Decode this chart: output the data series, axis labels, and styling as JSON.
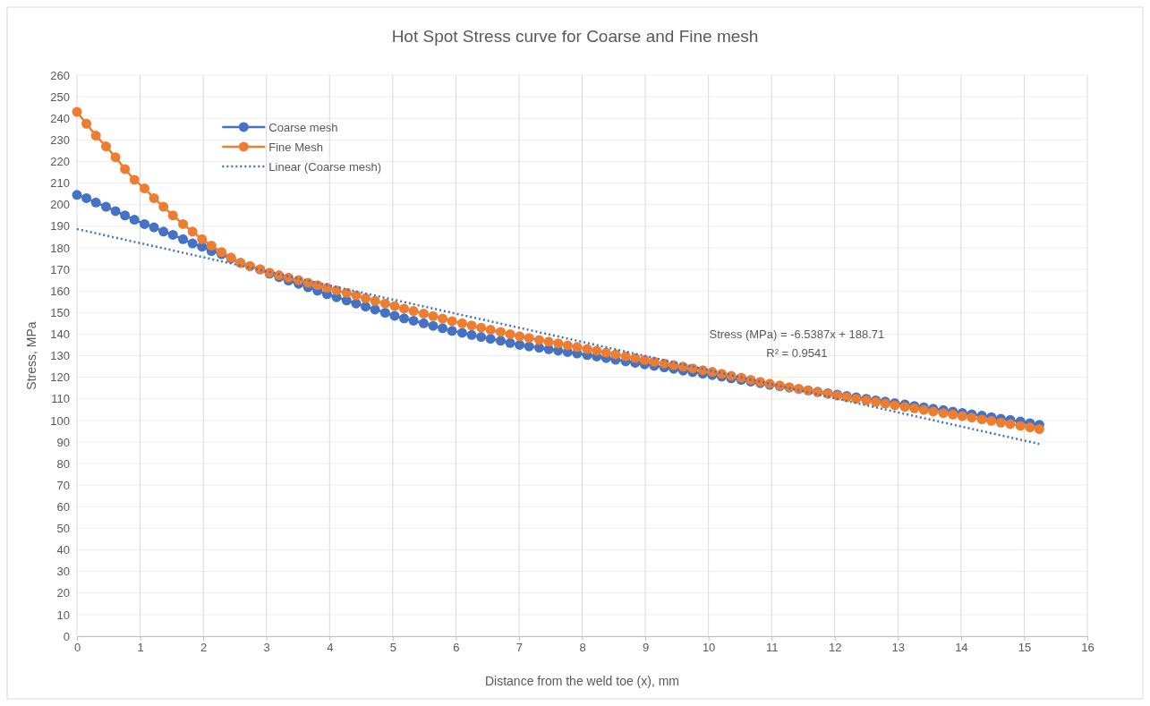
{
  "chart_data": {
    "type": "line",
    "title": "Hot Spot Stress curve for Coarse and Fine mesh",
    "xlabel": "Distance from the weld toe (x), mm",
    "ylabel": "Stress, MPa",
    "x": [
      0,
      0.15,
      0.3,
      0.46,
      0.61,
      0.76,
      0.91,
      1.07,
      1.22,
      1.37,
      1.52,
      1.68,
      1.83,
      1.98,
      2.13,
      2.29,
      2.44,
      2.59,
      2.74,
      2.9,
      3.05,
      3.2,
      3.35,
      3.51,
      3.66,
      3.81,
      3.96,
      4.11,
      4.27,
      4.42,
      4.57,
      4.72,
      4.88,
      5.03,
      5.18,
      5.33,
      5.49,
      5.64,
      5.79,
      5.94,
      6.1,
      6.25,
      6.4,
      6.55,
      6.71,
      6.86,
      7.01,
      7.16,
      7.32,
      7.47,
      7.62,
      7.77,
      7.92,
      8.08,
      8.23,
      8.38,
      8.53,
      8.69,
      8.84,
      8.99,
      9.14,
      9.3,
      9.45,
      9.6,
      9.75,
      9.91,
      10.06,
      10.21,
      10.36,
      10.52,
      10.67,
      10.82,
      10.97,
      11.13,
      11.28,
      11.43,
      11.58,
      11.73,
      11.89,
      12.04,
      12.19,
      12.34,
      12.5,
      12.65,
      12.8,
      12.95,
      13.11,
      13.26,
      13.41,
      13.56,
      13.72,
      13.87,
      14.02,
      14.17,
      14.33,
      14.48,
      14.63,
      14.78,
      14.94,
      15.09,
      15.24
    ],
    "series": [
      {
        "name": "Coarse mesh",
        "color": "#4472c4",
        "values": [
          204.5,
          203,
          201,
          199,
          197,
          195,
          193,
          191,
          189.5,
          187.5,
          186,
          184,
          182,
          180.5,
          178.5,
          177,
          175,
          173,
          171.5,
          170,
          168,
          166.4,
          164.8,
          163.3,
          161.7,
          160.1,
          158.5,
          157.1,
          155.6,
          154.2,
          152.8,
          151.4,
          149.9,
          148.5,
          147.3,
          146.2,
          145,
          143.8,
          142.7,
          141.5,
          140.6,
          139.6,
          138.7,
          137.8,
          136.9,
          135.9,
          135,
          134.3,
          133.7,
          133,
          132.3,
          131.7,
          131,
          130.3,
          129.6,
          128.9,
          128.1,
          127.4,
          126.7,
          126,
          125.3,
          124.6,
          123.9,
          123.1,
          122.4,
          121.7,
          121,
          120.3,
          119.5,
          118.8,
          118,
          117.3,
          116.5,
          115.9,
          115.2,
          114.6,
          113.9,
          113.3,
          112.6,
          112,
          111.3,
          110.7,
          110,
          109.3,
          108.7,
          108,
          107.4,
          106.7,
          106.1,
          105.4,
          104.8,
          104.1,
          103.5,
          102.8,
          102.2,
          101.5,
          100.8,
          100.2,
          99.5,
          98.7,
          98
        ]
      },
      {
        "name": "Fine Mesh",
        "color": "#ed7d31",
        "values": [
          243,
          237.5,
          232,
          227,
          222,
          216.5,
          211.5,
          207.5,
          203,
          199,
          195,
          191,
          187.5,
          184,
          181,
          178,
          175.5,
          173,
          171.5,
          170,
          168.5,
          167.3,
          166.2,
          165,
          163.8,
          162.7,
          161.5,
          160.3,
          159.1,
          157.9,
          156.6,
          155.4,
          154.2,
          153,
          151.8,
          150.7,
          149.5,
          148.3,
          147.2,
          146,
          145,
          144,
          143,
          142,
          141,
          140,
          139,
          138.2,
          137.3,
          136.5,
          135.7,
          134.8,
          134,
          133.1,
          132.3,
          131.4,
          130.6,
          129.7,
          128.9,
          128,
          127.2,
          126.4,
          125.6,
          124.9,
          124.1,
          123.3,
          122.5,
          121.6,
          120.7,
          119.8,
          118.8,
          117.9,
          117,
          116.2,
          115.4,
          114.6,
          113.9,
          113.1,
          112.3,
          111.5,
          110.8,
          110,
          109.3,
          108.5,
          107.8,
          107,
          106.3,
          105.6,
          104.9,
          104.1,
          103.4,
          102.7,
          102,
          101.3,
          100.5,
          99.8,
          99,
          98.3,
          97.5,
          96.8,
          96
        ]
      },
      {
        "name": "Linear (Coarse mesh)",
        "color": "#4472c4",
        "x": [
          0,
          15.24
        ],
        "values": [
          188.7,
          89.1
        ],
        "marker": "none",
        "line_style": "dotted"
      }
    ],
    "marker": "circle",
    "line_style": "solid",
    "grid": true,
    "legend": "top left",
    "xlim": [
      0,
      16
    ],
    "xticks": [
      0,
      1,
      2,
      3,
      4,
      5,
      6,
      7,
      8,
      9,
      10,
      11,
      12,
      13,
      14,
      15,
      16
    ],
    "ylim": [
      0,
      260
    ],
    "yticks": [
      0,
      10,
      20,
      30,
      40,
      50,
      60,
      70,
      80,
      90,
      100,
      110,
      120,
      130,
      140,
      150,
      160,
      170,
      180,
      190,
      200,
      210,
      220,
      230,
      240,
      250,
      260
    ],
    "annotations": [
      "Stress (MPa) = -6.5387x + 188.71",
      "R² = 0.9541"
    ]
  }
}
